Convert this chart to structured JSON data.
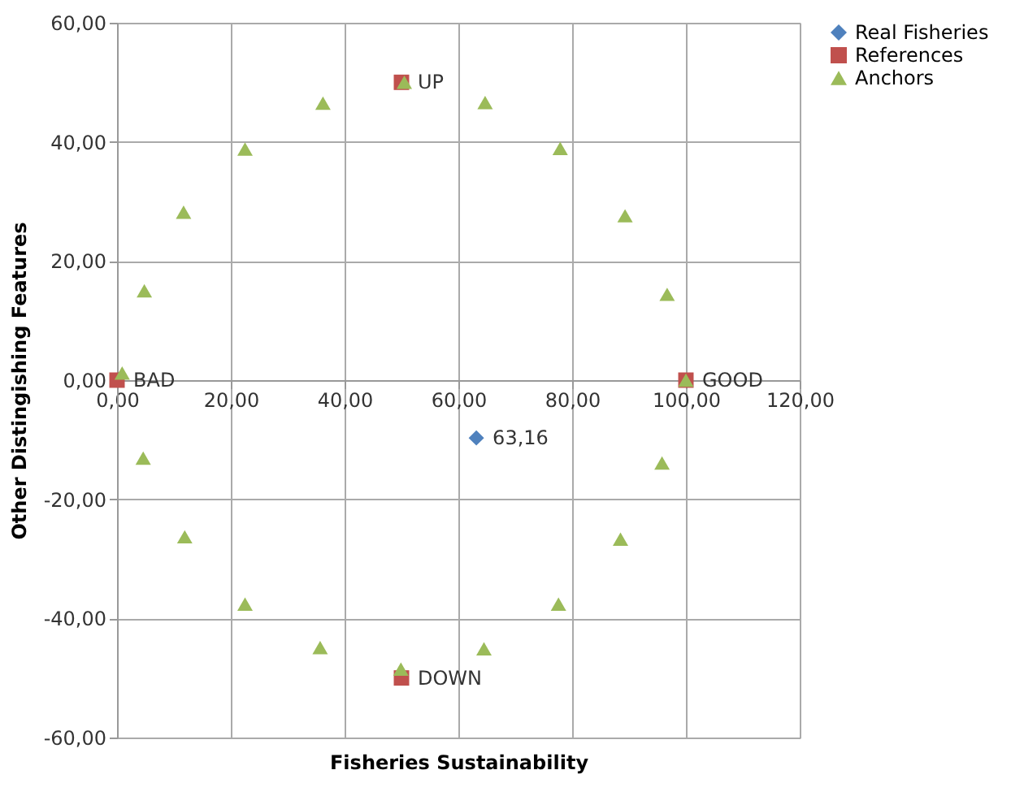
{
  "chart_data": {
    "type": "scatter",
    "xlabel": "Fisheries Sustainability",
    "ylabel": "Other Distingishing Features",
    "xlim": [
      0,
      120
    ],
    "ylim": [
      -60,
      60
    ],
    "xticks": [
      {
        "value": 0,
        "label": "0,00"
      },
      {
        "value": 20,
        "label": "20,00"
      },
      {
        "value": 40,
        "label": "40,00"
      },
      {
        "value": 60,
        "label": "60,00"
      },
      {
        "value": 80,
        "label": "80,00"
      },
      {
        "value": 100,
        "label": "100,00"
      },
      {
        "value": 120,
        "label": "120,00"
      }
    ],
    "yticks": [
      {
        "value": -60,
        "label": "-60,00"
      },
      {
        "value": -40,
        "label": "-40,00"
      },
      {
        "value": -20,
        "label": "-20,00"
      },
      {
        "value": 0,
        "label": "0,00"
      },
      {
        "value": 20,
        "label": "20,00"
      },
      {
        "value": 40,
        "label": "40,00"
      },
      {
        "value": 60,
        "label": "60,00"
      }
    ],
    "grid": true,
    "legend": "right",
    "annotations": [
      {
        "text": "63,16",
        "x": 63.16,
        "y": -9.7
      },
      {
        "text": "BAD",
        "x": 0,
        "y": 0
      },
      {
        "text": "GOOD",
        "x": 100,
        "y": 0
      },
      {
        "text": "UP",
        "x": 50,
        "y": 50
      },
      {
        "text": "DOWN",
        "x": 50,
        "y": -50
      }
    ],
    "series": [
      {
        "name": "Real Fisheries",
        "color": "#4f81bd",
        "marker": "diamond",
        "x": [
          63.16
        ],
        "values": [
          -9.7
        ]
      },
      {
        "name": "References",
        "color": "#c0504d",
        "marker": "square",
        "x": [
          0,
          100,
          50,
          50
        ],
        "values": [
          0,
          0,
          50,
          -50
        ]
      },
      {
        "name": "Anchors",
        "color": "#9bbb59",
        "marker": "triangle",
        "x": [
          0.9,
          4.8,
          11.7,
          22.5,
          36.2,
          50.5,
          64.7,
          77.9,
          89.3,
          96.7,
          100,
          95.8,
          88.5,
          77.6,
          64.5,
          49.9,
          35.7,
          22.5,
          11.9,
          4.6
        ],
        "values": [
          1.2,
          15.0,
          28.2,
          38.8,
          46.5,
          50,
          46.6,
          38.9,
          27.6,
          14.4,
          0,
          -13.9,
          -26.7,
          -37.6,
          -45.1,
          -48.5,
          -44.9,
          -37.6,
          -26.3,
          -13.1
        ]
      }
    ]
  }
}
